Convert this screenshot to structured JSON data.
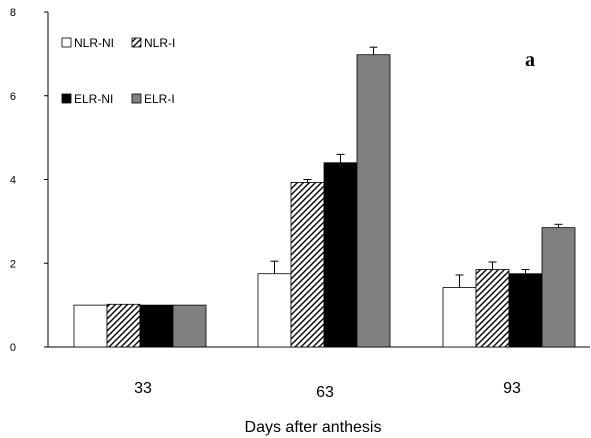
{
  "chart_data": {
    "type": "bar",
    "categories": [
      "33",
      "63",
      "93"
    ],
    "xlabel": "Days after anthesis",
    "ylabel": "",
    "ylim": [
      0,
      8
    ],
    "yticks": [
      0,
      2,
      4,
      6,
      8
    ],
    "annotation": "a",
    "grid": false,
    "legend_position": "top-left",
    "series": [
      {
        "name": "NLR-NI",
        "values": [
          1.0,
          1.75,
          1.42
        ],
        "errors": [
          0.0,
          0.3,
          0.3
        ],
        "fill": "#ffffff",
        "pattern": "none"
      },
      {
        "name": "NLR-I",
        "values": [
          1.02,
          3.93,
          1.85
        ],
        "errors": [
          0.0,
          0.07,
          0.18
        ],
        "fill": "#ffffff",
        "pattern": "diagonal-hatch"
      },
      {
        "name": "ELR-NI",
        "values": [
          1.0,
          4.4,
          1.75
        ],
        "errors": [
          0.0,
          0.2,
          0.1
        ],
        "fill": "#000000",
        "pattern": "none"
      },
      {
        "name": "ELR-I",
        "values": [
          1.0,
          6.98,
          2.85
        ],
        "errors": [
          0.0,
          0.18,
          0.08
        ],
        "fill": "#808080",
        "pattern": "none"
      }
    ]
  }
}
